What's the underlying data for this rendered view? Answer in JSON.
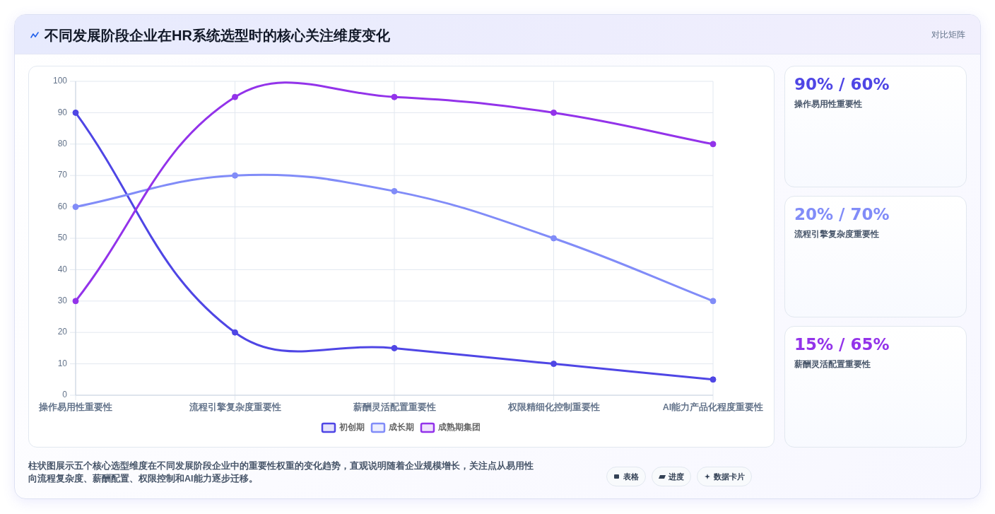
{
  "chart_data": [
    {
      "type": "line",
      "title": "不同发展阶段企业在HR系统选型时的核心关注维度变化",
      "categories": [
        "操作易用性重要性",
        "流程引擎复杂度重要性",
        "薪酬灵活配置重要性",
        "权限精细化控制重要性",
        "AI能力产品化程度重要性"
      ],
      "series": [
        {
          "name": "初创期",
          "color": "#4f46e5",
          "values": [
            90,
            20,
            15,
            10,
            5
          ]
        },
        {
          "name": "成长期",
          "color": "#818cf8",
          "values": [
            60,
            70,
            65,
            50,
            30
          ]
        },
        {
          "name": "成熟期集团",
          "color": "#9333ea",
          "values": [
            30,
            95,
            95,
            90,
            80
          ]
        }
      ],
      "ylim": [
        0,
        100
      ],
      "yticks": [
        0,
        10,
        20,
        30,
        40,
        50,
        60,
        70,
        80,
        90,
        100
      ],
      "grid": true,
      "legend": "bottom",
      "marker": "circle",
      "line_style": "solid",
      "annotations": [
        "柱状图展示五个核心选型维度在不同发展阶段企业中的重要性权重的变化趋势，直观说明随着企业规模增长，关注点从易用性向流程复杂度、薪酬配置、权限控制和AI能力逐步迁移。",
        "表格",
        "进度",
        "数据卡片"
      ]
    },
    {
      "type": "other",
      "title": "90% / 60%",
      "subtitle": "操作易用性重要性",
      "color": "#4f46e5",
      "annotations": [
        "对比矩阵"
      ]
    },
    {
      "type": "other",
      "title": "20% / 70%",
      "subtitle": "流程引擎复杂度重要性",
      "color": "#818cf8"
    },
    {
      "type": "other",
      "title": "15% / 65%",
      "subtitle": "薪酬灵活配置重要性",
      "color": "#9333ea"
    }
  ]
}
